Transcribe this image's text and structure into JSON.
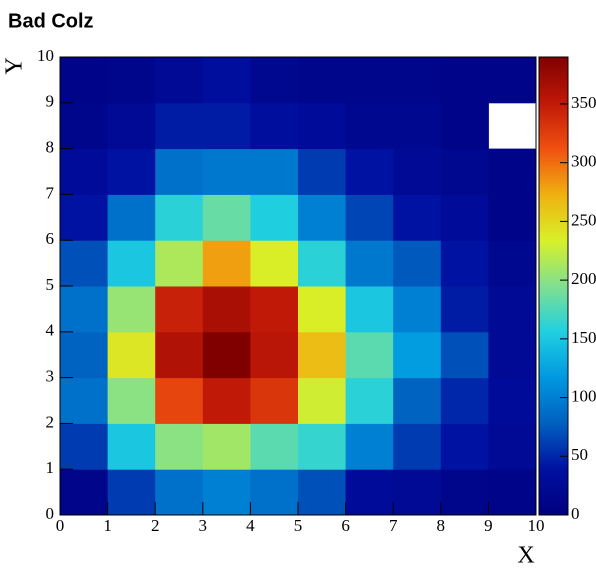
{
  "chart_data": {
    "type": "heatmap",
    "title": "Bad Colz",
    "x_label": "X",
    "y_label": "Y",
    "xbins": [
      0,
      1,
      2,
      3,
      4,
      5,
      6,
      7,
      8,
      9,
      10
    ],
    "ybins": [
      0,
      1,
      2,
      3,
      4,
      5,
      6,
      7,
      8,
      9,
      10
    ],
    "values": [
      [
        12,
        60,
        90,
        100,
        90,
        70,
        30,
        25,
        15,
        10
      ],
      [
        60,
        150,
        200,
        210,
        180,
        165,
        100,
        60,
        40,
        25
      ],
      [
        90,
        200,
        320,
        350,
        330,
        230,
        160,
        80,
        50,
        30
      ],
      [
        80,
        240,
        360,
        390,
        355,
        265,
        180,
        120,
        70,
        25
      ],
      [
        90,
        205,
        345,
        365,
        350,
        235,
        150,
        100,
        45,
        25
      ],
      [
        70,
        150,
        215,
        280,
        235,
        160,
        95,
        75,
        40,
        20
      ],
      [
        40,
        90,
        160,
        185,
        155,
        100,
        65,
        40,
        30,
        10
      ],
      [
        30,
        40,
        90,
        95,
        95,
        60,
        40,
        25,
        20,
        10
      ],
      [
        15,
        25,
        45,
        45,
        35,
        30,
        20,
        20,
        10,
        null
      ],
      [
        10,
        15,
        25,
        35,
        20,
        15,
        15,
        15,
        10,
        10
      ]
    ],
    "xlim": [
      0,
      10
    ],
    "ylim": [
      0,
      10
    ],
    "xticks": [
      0,
      1,
      2,
      3,
      4,
      5,
      6,
      7,
      8,
      9,
      10
    ],
    "yticks": [
      0,
      1,
      2,
      3,
      4,
      5,
      6,
      7,
      8,
      9,
      10
    ],
    "zlim": [
      0,
      390
    ],
    "zticks": [
      0,
      50,
      100,
      150,
      200,
      250,
      300,
      350
    ],
    "colormap": [
      "#000080",
      "#0010a0",
      "#0060c0",
      "#0098e0",
      "#20d0e0",
      "#80e090",
      "#d8f028",
      "#f0b010",
      "#f05010",
      "#c01808",
      "#800000"
    ]
  }
}
